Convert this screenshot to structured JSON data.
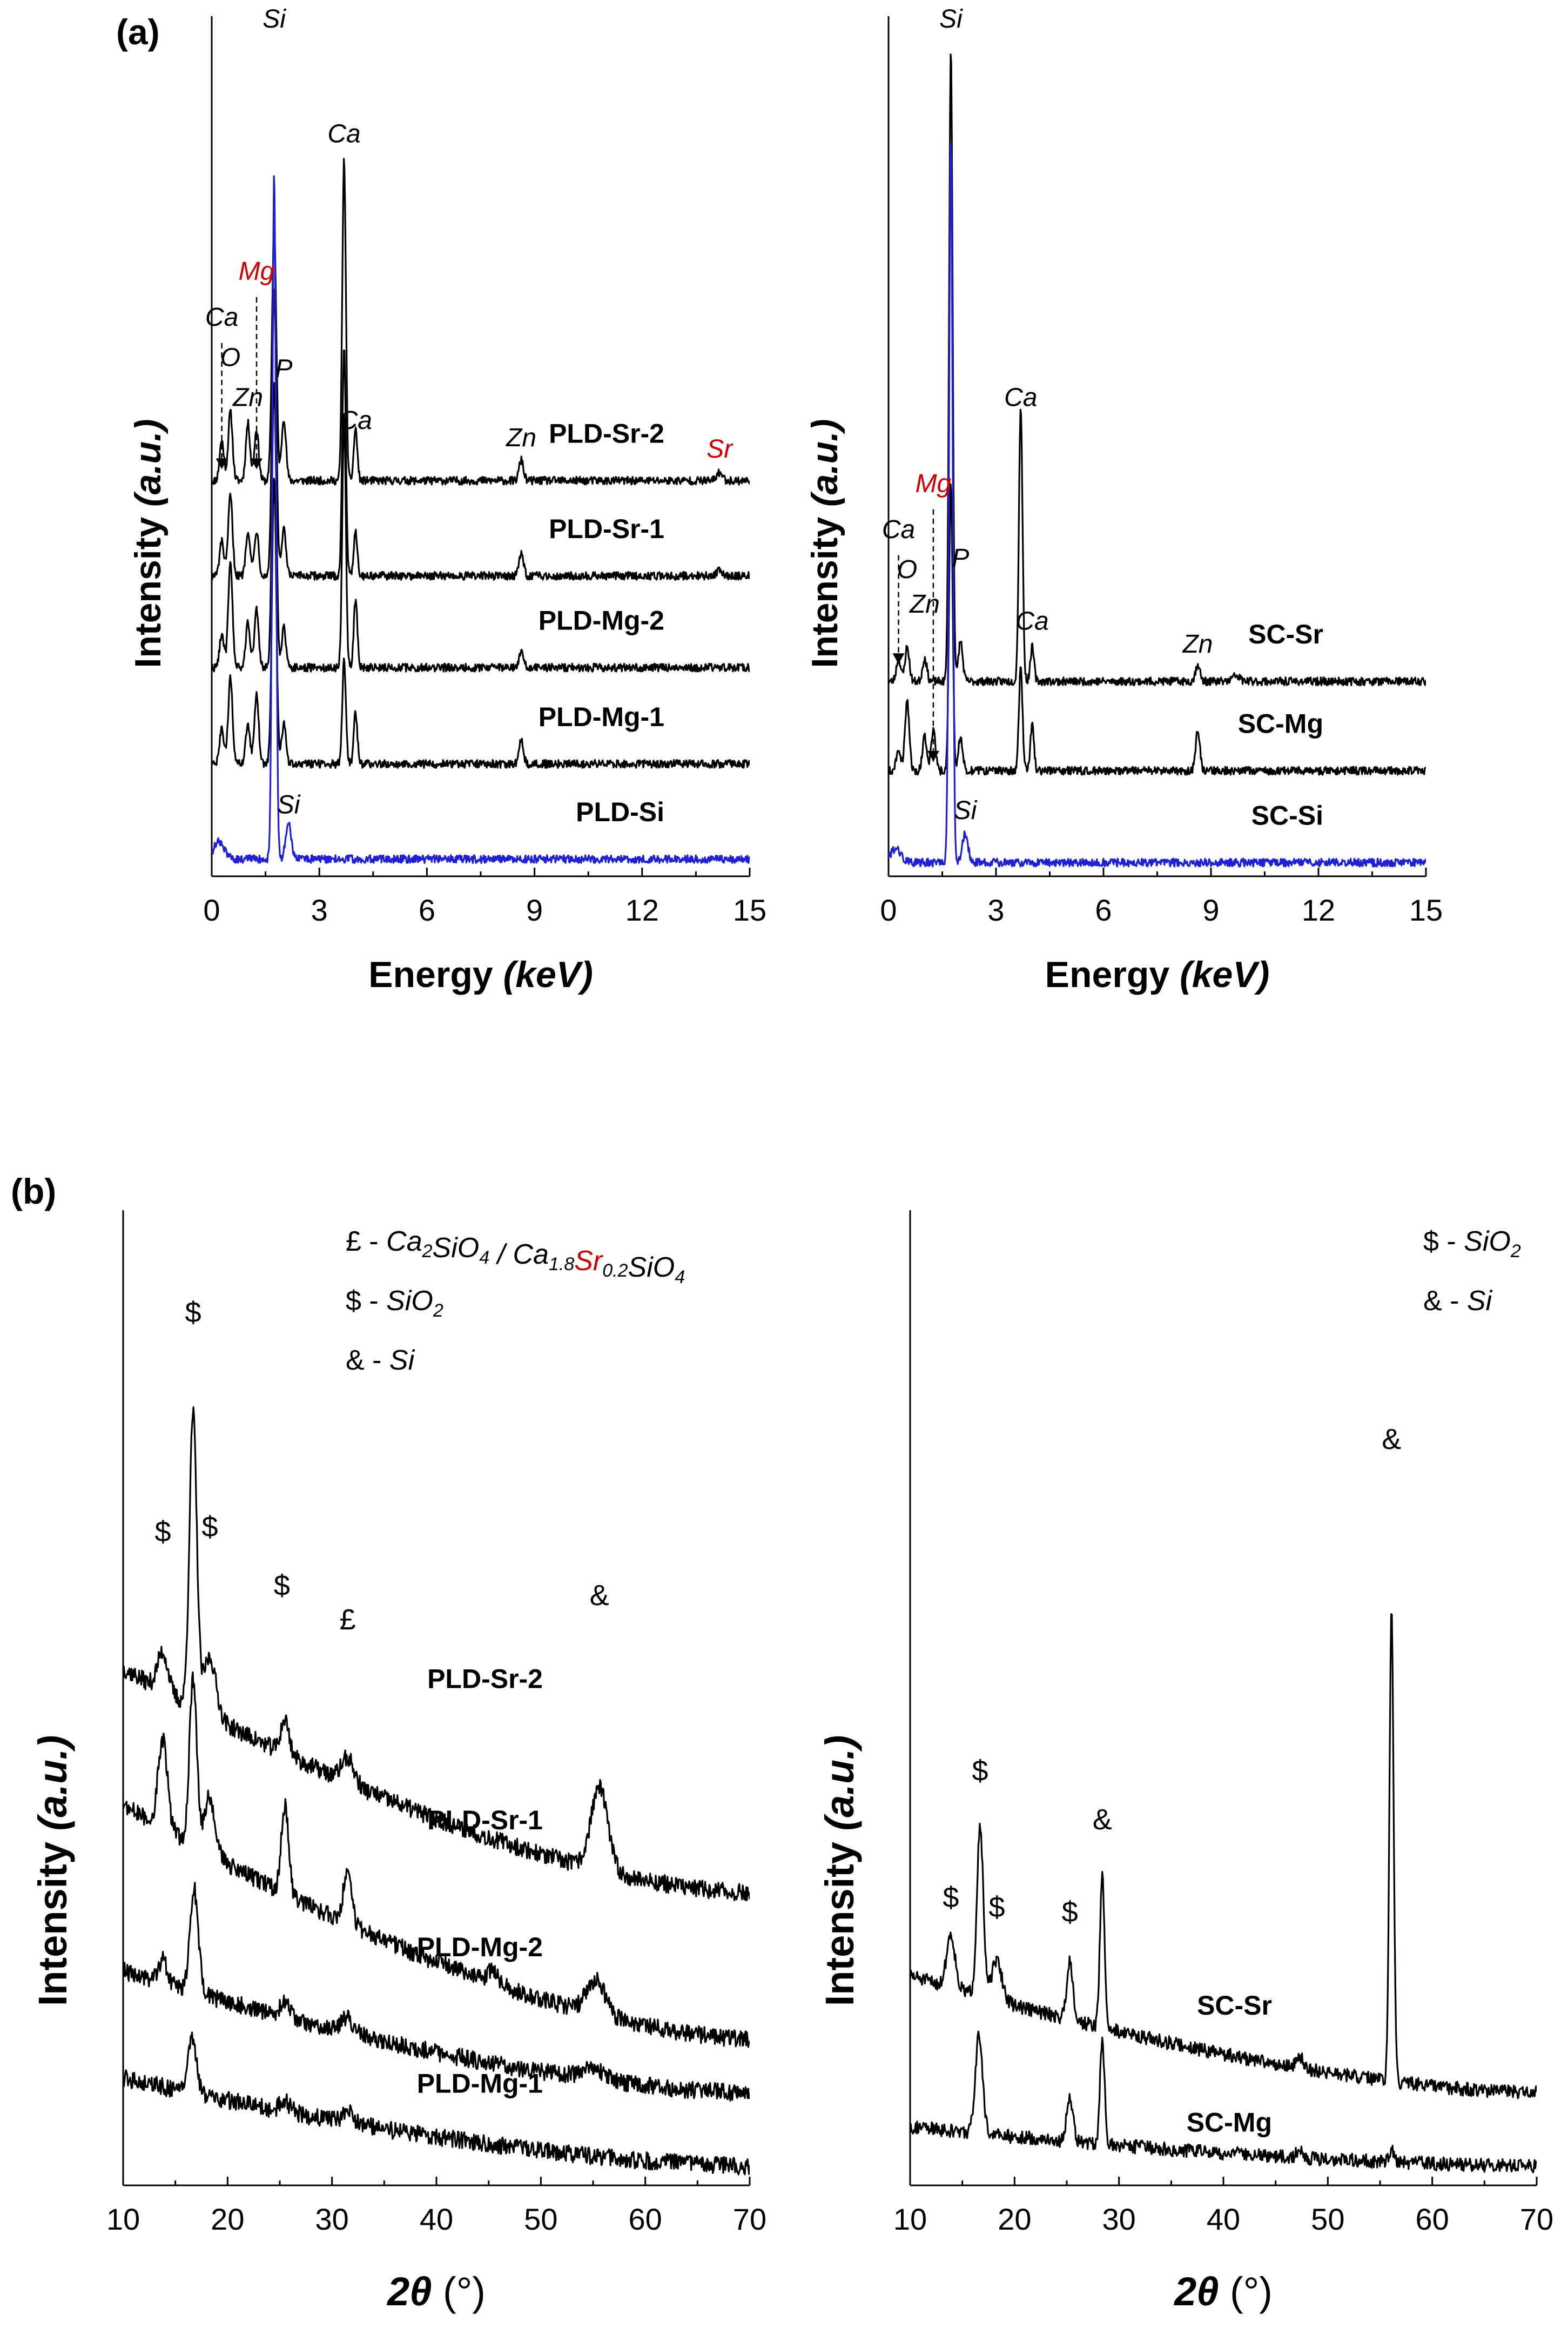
{
  "figure": {
    "panel_a_label": "(a)",
    "panel_b_label": "(b)"
  },
  "chart_data": [
    {
      "id": "a-left",
      "type": "line",
      "title": "",
      "panel": "(a)",
      "xlabel": "Energy",
      "xlabel_unit": "(keV)",
      "ylabel": "Intensity",
      "ylabel_unit": "(a.u.)",
      "xlim": [
        0,
        15
      ],
      "xticks": [
        0,
        3,
        6,
        9,
        12,
        15
      ],
      "ylim": [
        0,
        7.5
      ],
      "grid": false,
      "series": [
        {
          "name": "PLD-Sr-2",
          "baseline": 3.45,
          "color": "#000000",
          "peaks": [
            [
              0.28,
              0.35,
              0.06
            ],
            [
              0.52,
              0.6,
              0.06
            ],
            [
              1.01,
              0.5,
              0.06
            ],
            [
              1.25,
              0.45,
              0.06
            ],
            [
              1.74,
              2.2,
              0.06
            ],
            [
              2.01,
              0.55,
              0.06
            ],
            [
              3.69,
              2.8,
              0.05
            ],
            [
              4.01,
              0.45,
              0.05
            ],
            [
              8.63,
              0.18,
              0.06
            ],
            [
              14.16,
              0.07,
              0.08
            ]
          ]
        },
        {
          "name": "PLD-Sr-1",
          "baseline": 2.62,
          "color": "#000000",
          "peaks": [
            [
              0.28,
              0.3,
              0.06
            ],
            [
              0.52,
              0.7,
              0.06
            ],
            [
              1.01,
              0.4,
              0.06
            ],
            [
              1.25,
              0.4,
              0.06
            ],
            [
              1.74,
              2.5,
              0.06
            ],
            [
              2.01,
              0.4,
              0.06
            ],
            [
              3.69,
              2.0,
              0.05
            ],
            [
              4.01,
              0.4,
              0.05
            ],
            [
              8.63,
              0.2,
              0.06
            ],
            [
              14.16,
              0.05,
              0.08
            ]
          ]
        },
        {
          "name": "PLD-Mg-2",
          "baseline": 1.82,
          "color": "#000000",
          "peaks": [
            [
              0.28,
              0.3,
              0.06
            ],
            [
              0.52,
              0.9,
              0.06
            ],
            [
              1.01,
              0.4,
              0.06
            ],
            [
              1.25,
              0.5,
              0.06
            ],
            [
              1.74,
              2.5,
              0.06
            ],
            [
              2.01,
              0.35,
              0.06
            ],
            [
              3.69,
              2.2,
              0.05
            ],
            [
              4.01,
              0.6,
              0.05
            ],
            [
              8.63,
              0.15,
              0.06
            ]
          ]
        },
        {
          "name": "PLD-Mg-1",
          "baseline": 0.98,
          "color": "#000000",
          "peaks": [
            [
              0.28,
              0.3,
              0.06
            ],
            [
              0.52,
              0.75,
              0.06
            ],
            [
              1.01,
              0.35,
              0.06
            ],
            [
              1.25,
              0.6,
              0.06
            ],
            [
              1.74,
              2.5,
              0.06
            ],
            [
              2.01,
              0.35,
              0.06
            ],
            [
              3.69,
              0.9,
              0.05
            ],
            [
              4.01,
              0.45,
              0.05
            ],
            [
              8.63,
              0.2,
              0.06
            ]
          ]
        },
        {
          "name": "PLD-Si",
          "baseline": 0.15,
          "color": "#1f1fd6",
          "peaks": [
            [
              0.2,
              0.15,
              0.15
            ],
            [
              1.74,
              6.0,
              0.05
            ],
            [
              2.14,
              0.3,
              0.08
            ]
          ]
        }
      ],
      "annotations": [
        {
          "text": "Si",
          "x": 1.74,
          "y": 7.4
        },
        {
          "text": "Ca",
          "x": 3.69,
          "y": 6.4
        },
        {
          "text": "Mg",
          "x": 1.25,
          "y": 5.2,
          "color": "#cc0000"
        },
        {
          "text": "Ca",
          "x": 0.28,
          "y": 4.8
        },
        {
          "text": "O",
          "x": 0.52,
          "y": 4.45
        },
        {
          "text": "Zn",
          "x": 1.01,
          "y": 4.1
        },
        {
          "text": "P",
          "x": 2.01,
          "y": 4.35
        },
        {
          "text": "Ca",
          "x": 4.01,
          "y": 3.9
        },
        {
          "text": "Zn",
          "x": 8.63,
          "y": 3.75
        },
        {
          "text": "Sr",
          "x": 14.16,
          "y": 3.65,
          "color": "#cc0000"
        },
        {
          "text": "Si",
          "x": 2.14,
          "y": 0.55
        }
      ]
    },
    {
      "id": "a-right",
      "type": "line",
      "title": "",
      "panel": "(a)",
      "xlabel": "Energy",
      "xlabel_unit": "(keV)",
      "ylabel": "Intensity",
      "ylabel_unit": "(a.u.)",
      "xlim": [
        0,
        15
      ],
      "xticks": [
        0,
        3,
        6,
        9,
        12,
        15
      ],
      "ylim": [
        0,
        7.5
      ],
      "grid": false,
      "series": [
        {
          "name": "SC-Sr",
          "baseline": 1.7,
          "color": "#000000",
          "peaks": [
            [
              0.28,
              0.2,
              0.06
            ],
            [
              0.52,
              0.3,
              0.06
            ],
            [
              1.01,
              0.2,
              0.06
            ],
            [
              1.74,
              5.5,
              0.05
            ],
            [
              2.01,
              0.35,
              0.06
            ],
            [
              3.69,
              2.4,
              0.05
            ],
            [
              4.01,
              0.3,
              0.05
            ],
            [
              8.63,
              0.15,
              0.06
            ],
            [
              9.7,
              0.05,
              0.1
            ]
          ]
        },
        {
          "name": "SC-Mg",
          "baseline": 0.92,
          "color": "#000000",
          "peaks": [
            [
              0.28,
              0.2,
              0.06
            ],
            [
              0.52,
              0.6,
              0.06
            ],
            [
              1.01,
              0.3,
              0.06
            ],
            [
              1.25,
              0.35,
              0.06
            ],
            [
              1.74,
              2.5,
              0.05
            ],
            [
              2.01,
              0.3,
              0.06
            ],
            [
              3.69,
              0.9,
              0.05
            ],
            [
              4.01,
              0.4,
              0.05
            ],
            [
              8.63,
              0.35,
              0.06
            ]
          ]
        },
        {
          "name": "SC-Si",
          "baseline": 0.12,
          "color": "#1f1fd6",
          "peaks": [
            [
              0.2,
              0.12,
              0.15
            ],
            [
              1.74,
              6.3,
              0.05
            ],
            [
              2.14,
              0.25,
              0.08
            ]
          ]
        }
      ],
      "annotations": [
        {
          "text": "Si",
          "x": 1.74,
          "y": 7.4
        },
        {
          "text": "Ca",
          "x": 3.69,
          "y": 4.1
        },
        {
          "text": "Mg",
          "x": 1.25,
          "y": 3.35,
          "color": "#cc0000"
        },
        {
          "text": "Ca",
          "x": 0.28,
          "y": 2.95
        },
        {
          "text": "O",
          "x": 0.52,
          "y": 2.6
        },
        {
          "text": "Zn",
          "x": 1.01,
          "y": 2.3
        },
        {
          "text": "P",
          "x": 2.01,
          "y": 2.7
        },
        {
          "text": "Ca",
          "x": 4.01,
          "y": 2.15
        },
        {
          "text": "Zn",
          "x": 8.63,
          "y": 1.95
        },
        {
          "text": "Si",
          "x": 2.14,
          "y": 0.5
        }
      ]
    },
    {
      "id": "b-left",
      "type": "line",
      "title": "",
      "panel": "(b)",
      "xlabel": "2θ",
      "xlabel_unit": "(°)",
      "ylabel": "Intensity",
      "ylabel_unit": "(a.u.)",
      "xlim": [
        10,
        70
      ],
      "xticks": [
        10,
        20,
        30,
        40,
        50,
        60,
        70
      ],
      "ylim": [
        0,
        10
      ],
      "grid": false,
      "legend": [
        {
          "symbol": "£",
          "phase": "Ca2SiO4 / Ca1.8Sr0.2SiO4"
        },
        {
          "symbol": "$",
          "phase": "SiO2"
        },
        {
          "symbol": "&",
          "phase": "Si"
        }
      ],
      "series": [
        {
          "name": "PLD-Sr-2",
          "start": 5.3,
          "end": 3.0,
          "color": "#000000",
          "peaks": [
            [
              13.8,
              0.4,
              0.5
            ],
            [
              16.7,
              3.0,
              0.35
            ],
            [
              18.3,
              0.6,
              0.6
            ],
            [
              25.5,
              0.35,
              0.4
            ],
            [
              31.5,
              0.25,
              0.6
            ],
            [
              55.6,
              0.85,
              0.8
            ]
          ]
        },
        {
          "name": "PLD-Sr-1",
          "start": 3.9,
          "end": 1.5,
          "color": "#000000",
          "peaks": [
            [
              13.8,
              0.9,
              0.45
            ],
            [
              16.7,
              1.7,
              0.35
            ],
            [
              18.3,
              0.6,
              0.5
            ],
            [
              25.5,
              0.9,
              0.35
            ],
            [
              31.5,
              0.55,
              0.4
            ],
            [
              45.4,
              0.12,
              0.5
            ],
            [
              55.3,
              0.35,
              0.9
            ]
          ]
        },
        {
          "name": "PLD-Mg-2",
          "start": 2.2,
          "end": 0.95,
          "color": "#000000",
          "peaks": [
            [
              13.8,
              0.25,
              0.4
            ],
            [
              16.8,
              1.05,
              0.4
            ],
            [
              25.5,
              0.15,
              0.5
            ],
            [
              31.5,
              0.15,
              0.6
            ],
            [
              55.0,
              0.1,
              1.2
            ]
          ]
        },
        {
          "name": "PLD-Mg-1",
          "start": 1.1,
          "end": 0.2,
          "color": "#000000",
          "peaks": [
            [
              16.6,
              0.6,
              0.4
            ],
            [
              25.5,
              0.1,
              0.5
            ],
            [
              31.5,
              0.12,
              0.5
            ]
          ]
        }
      ],
      "annotations": [
        {
          "text": "$",
          "x": 16.7,
          "y": 8.85
        },
        {
          "text": "$",
          "x": 13.8,
          "y": 6.6
        },
        {
          "text": "$",
          "x": 18.3,
          "y": 6.65
        },
        {
          "text": "$",
          "x": 25.2,
          "y": 6.05
        },
        {
          "text": "£",
          "x": 31.5,
          "y": 5.7
        },
        {
          "text": "&",
          "x": 55.6,
          "y": 5.95
        }
      ]
    },
    {
      "id": "b-right",
      "type": "line",
      "title": "",
      "panel": "(b)",
      "xlabel": "2θ",
      "xlabel_unit": "(°)",
      "ylabel": "Intensity",
      "ylabel_unit": "(a.u.)",
      "xlim": [
        10,
        70
      ],
      "xticks": [
        10,
        20,
        30,
        40,
        50,
        60,
        70
      ],
      "ylim": [
        0,
        10
      ],
      "grid": false,
      "legend": [
        {
          "symbol": "$",
          "phase": "SiO2"
        },
        {
          "symbol": "&",
          "phase": "Si"
        }
      ],
      "series": [
        {
          "name": "SC-Sr",
          "start": 2.15,
          "end": 0.95,
          "color": "#000000",
          "peaks": [
            [
              13.9,
              0.55,
              0.4
            ],
            [
              16.7,
              1.75,
              0.3
            ],
            [
              18.3,
              0.4,
              0.5
            ],
            [
              25.3,
              0.6,
              0.3
            ],
            [
              28.4,
              1.55,
              0.22
            ],
            [
              47.3,
              0.12,
              0.3
            ],
            [
              56.1,
              4.8,
              0.2
            ]
          ]
        },
        {
          "name": "SC-Mg",
          "start": 0.6,
          "end": 0.2,
          "color": "#000000",
          "peaks": [
            [
              16.6,
              1.0,
              0.35
            ],
            [
              25.3,
              0.45,
              0.3
            ],
            [
              28.4,
              1.05,
              0.22
            ],
            [
              47.3,
              0.1,
              0.3
            ],
            [
              56.1,
              0.12,
              0.2
            ]
          ]
        }
      ],
      "annotations": [
        {
          "text": "$",
          "x": 16.7,
          "y": 4.15
        },
        {
          "text": "$",
          "x": 13.9,
          "y": 2.85
        },
        {
          "text": "$",
          "x": 18.3,
          "y": 2.75
        },
        {
          "text": "$",
          "x": 25.3,
          "y": 2.7
        },
        {
          "text": "&",
          "x": 28.4,
          "y": 3.65
        },
        {
          "text": "&",
          "x": 56.1,
          "y": 7.55
        }
      ]
    }
  ]
}
